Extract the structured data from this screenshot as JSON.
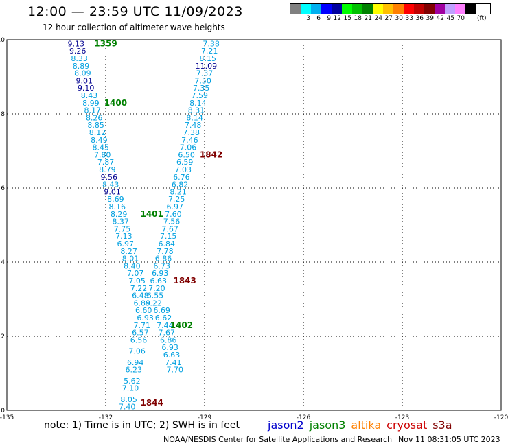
{
  "header": {
    "title": "12:00 — 23:59 UTC 11/09/2023",
    "subtitle": "12 hour collection of altimeter wave heights"
  },
  "legend": {
    "swatches": [
      {
        "color": "#808080",
        "label": ""
      },
      {
        "color": "#00ffff",
        "label": "3"
      },
      {
        "color": "#00b0f0",
        "label": "6"
      },
      {
        "color": "#0000ff",
        "label": "9"
      },
      {
        "color": "#0000a0",
        "label": "12"
      },
      {
        "color": "#00ff00",
        "label": "15"
      },
      {
        "color": "#00c000",
        "label": "18"
      },
      {
        "color": "#008000",
        "label": "21"
      },
      {
        "color": "#ffff00",
        "label": "24"
      },
      {
        "color": "#ffc000",
        "label": "27"
      },
      {
        "color": "#ff8000",
        "label": "30"
      },
      {
        "color": "#ff0000",
        "label": "33"
      },
      {
        "color": "#c00000",
        "label": "36"
      },
      {
        "color": "#800000",
        "label": "39"
      },
      {
        "color": "#a000a0",
        "label": "42"
      },
      {
        "color": "#c0a0ff",
        "label": "45"
      },
      {
        "color": "#ff80ff",
        "label": "70"
      },
      {
        "color": "#000000",
        "label": ""
      }
    ],
    "unit": "(ft)"
  },
  "note": "note:  1) Time is in UTC;  2) SWH is in feet",
  "satellites": [
    {
      "name": "jason2",
      "color": "#0000cc"
    },
    {
      "name": "jason3",
      "color": "#008000"
    },
    {
      "name": "altika",
      "color": "#ff8000"
    },
    {
      "name": "cryosat",
      "color": "#cc0000"
    },
    {
      "name": "s3a",
      "color": "#800000"
    }
  ],
  "footer": {
    "credit": "NOAA/NESDIS Center for Satellite Applications and Research",
    "timestamp": "Nov 11 08:31:05 UTC 2023"
  },
  "colors": {
    "swh_low": "#00a0e0",
    "swh_mid": "#000090",
    "jason3_time": "#008000",
    "s3a_time": "#800000"
  },
  "chart_data": {
    "type": "scatter",
    "xlim": [
      -135,
      -120
    ],
    "ylim": [
      0,
      10
    ],
    "x_ticks": [
      "-135",
      "-132",
      "-129",
      "-126",
      "-123",
      "-120"
    ],
    "y_ticks": [
      "0",
      "2",
      "4",
      "6",
      "8",
      "10"
    ],
    "grid": true,
    "time_labels": [
      {
        "text": "1359",
        "x": -132.0,
        "y": 9.9,
        "color": "#008000"
      },
      {
        "text": "1400",
        "x": -131.7,
        "y": 8.3,
        "color": "#008000"
      },
      {
        "text": "1401",
        "x": -130.6,
        "y": 5.3,
        "color": "#008000"
      },
      {
        "text": "1402",
        "x": -129.7,
        "y": 2.3,
        "color": "#008000"
      },
      {
        "text": "1842",
        "x": -128.8,
        "y": 6.9,
        "color": "#800000"
      },
      {
        "text": "1843",
        "x": -129.6,
        "y": 3.5,
        "color": "#800000"
      },
      {
        "text": "1844",
        "x": -130.6,
        "y": 0.2,
        "color": "#800000"
      }
    ],
    "series": [
      {
        "name": "jason3",
        "points": [
          {
            "x": -132.9,
            "y": 9.9,
            "v": "9.13"
          },
          {
            "x": -132.85,
            "y": 9.7,
            "v": "9.26"
          },
          {
            "x": -132.8,
            "y": 9.5,
            "v": "8.33"
          },
          {
            "x": -132.75,
            "y": 9.3,
            "v": "8.89"
          },
          {
            "x": -132.7,
            "y": 9.1,
            "v": "8.09"
          },
          {
            "x": -132.65,
            "y": 8.9,
            "v": "9.01"
          },
          {
            "x": -132.6,
            "y": 8.7,
            "v": "9.10"
          },
          {
            "x": -132.5,
            "y": 8.5,
            "v": "8.43"
          },
          {
            "x": -132.45,
            "y": 8.3,
            "v": "8.99"
          },
          {
            "x": -132.4,
            "y": 8.1,
            "v": "8.17"
          },
          {
            "x": -132.35,
            "y": 7.9,
            "v": "8.26"
          },
          {
            "x": -132.3,
            "y": 7.7,
            "v": "8.85"
          },
          {
            "x": -132.25,
            "y": 7.5,
            "v": "8.12"
          },
          {
            "x": -132.2,
            "y": 7.3,
            "v": "8.49"
          },
          {
            "x": -132.15,
            "y": 7.1,
            "v": "8.45"
          },
          {
            "x": -132.1,
            "y": 6.9,
            "v": "7.80"
          },
          {
            "x": -132.0,
            "y": 6.7,
            "v": "7.87"
          },
          {
            "x": -131.95,
            "y": 6.5,
            "v": "8.79"
          },
          {
            "x": -131.9,
            "y": 6.3,
            "v": "9.56"
          },
          {
            "x": -131.85,
            "y": 6.1,
            "v": "8.43"
          },
          {
            "x": -131.8,
            "y": 5.9,
            "v": "9.01"
          },
          {
            "x": -131.7,
            "y": 5.7,
            "v": "8.69"
          },
          {
            "x": -131.65,
            "y": 5.5,
            "v": "8.16"
          },
          {
            "x": -131.6,
            "y": 5.3,
            "v": "8.29"
          },
          {
            "x": -131.55,
            "y": 5.1,
            "v": "8.37"
          },
          {
            "x": -131.5,
            "y": 4.9,
            "v": "7.75"
          },
          {
            "x": -131.45,
            "y": 4.7,
            "v": "7.13"
          },
          {
            "x": -131.4,
            "y": 4.5,
            "v": "6.97"
          },
          {
            "x": -131.3,
            "y": 4.3,
            "v": "8.27"
          },
          {
            "x": -131.25,
            "y": 4.1,
            "v": "8.01"
          },
          {
            "x": -131.2,
            "y": 3.9,
            "v": "8.40"
          },
          {
            "x": -131.1,
            "y": 3.7,
            "v": "7.07"
          },
          {
            "x": -131.05,
            "y": 3.5,
            "v": "7.05"
          },
          {
            "x": -131.0,
            "y": 3.3,
            "v": "7.22"
          },
          {
            "x": -130.95,
            "y": 3.1,
            "v": "6.48"
          },
          {
            "x": -130.9,
            "y": 2.9,
            "v": "6.89"
          },
          {
            "x": -130.85,
            "y": 2.7,
            "v": "6.60"
          },
          {
            "x": -130.8,
            "y": 2.5,
            "v": "6.93"
          },
          {
            "x": -130.9,
            "y": 2.3,
            "v": "7.71"
          },
          {
            "x": -130.95,
            "y": 2.1,
            "v": "6.57"
          },
          {
            "x": -131.0,
            "y": 1.9,
            "v": "6.56"
          },
          {
            "x": -131.05,
            "y": 1.6,
            "v": "7.06"
          },
          {
            "x": -131.1,
            "y": 1.3,
            "v": "6.94"
          },
          {
            "x": -131.15,
            "y": 1.1,
            "v": "6.23"
          },
          {
            "x": -131.2,
            "y": 0.8,
            "v": "5.62"
          },
          {
            "x": -131.25,
            "y": 0.6,
            "v": "7.10"
          },
          {
            "x": -131.3,
            "y": 0.3,
            "v": "8.05"
          },
          {
            "x": -131.35,
            "y": 0.1,
            "v": "7.40"
          }
        ]
      },
      {
        "name": "s3a",
        "points": [
          {
            "x": -128.8,
            "y": 9.9,
            "v": "7.38"
          },
          {
            "x": -128.85,
            "y": 9.7,
            "v": "7.21"
          },
          {
            "x": -128.9,
            "y": 9.5,
            "v": "8.15"
          },
          {
            "x": -128.95,
            "y": 9.3,
            "v": "11.09"
          },
          {
            "x": -129.0,
            "y": 9.1,
            "v": "7.37"
          },
          {
            "x": -129.05,
            "y": 8.9,
            "v": "7.50"
          },
          {
            "x": -129.1,
            "y": 8.7,
            "v": "7.35"
          },
          {
            "x": -129.15,
            "y": 8.5,
            "v": "7.59"
          },
          {
            "x": -129.2,
            "y": 8.3,
            "v": "8.14"
          },
          {
            "x": -129.25,
            "y": 8.1,
            "v": "8.31"
          },
          {
            "x": -129.3,
            "y": 7.9,
            "v": "8.14"
          },
          {
            "x": -129.35,
            "y": 7.7,
            "v": "7.48"
          },
          {
            "x": -129.4,
            "y": 7.5,
            "v": "7.38"
          },
          {
            "x": -129.45,
            "y": 7.3,
            "v": "7.46"
          },
          {
            "x": -129.5,
            "y": 7.1,
            "v": "7.06"
          },
          {
            "x": -129.55,
            "y": 6.9,
            "v": "6.50"
          },
          {
            "x": -129.6,
            "y": 6.7,
            "v": "6.59"
          },
          {
            "x": -129.65,
            "y": 6.5,
            "v": "7.03"
          },
          {
            "x": -129.7,
            "y": 6.3,
            "v": "6.76"
          },
          {
            "x": -129.75,
            "y": 6.1,
            "v": "6.82"
          },
          {
            "x": -129.8,
            "y": 5.9,
            "v": "8.21"
          },
          {
            "x": -129.85,
            "y": 5.7,
            "v": "7.25"
          },
          {
            "x": -129.9,
            "y": 5.5,
            "v": "6.97"
          },
          {
            "x": -129.95,
            "y": 5.3,
            "v": "7.60"
          },
          {
            "x": -130.0,
            "y": 5.1,
            "v": "7.56"
          },
          {
            "x": -130.05,
            "y": 4.9,
            "v": "7.67"
          },
          {
            "x": -130.1,
            "y": 4.7,
            "v": "7.15"
          },
          {
            "x": -130.15,
            "y": 4.5,
            "v": "6.84"
          },
          {
            "x": -130.2,
            "y": 4.3,
            "v": "7.78"
          },
          {
            "x": -130.25,
            "y": 4.1,
            "v": "6.86"
          },
          {
            "x": -130.3,
            "y": 3.9,
            "v": "6.73"
          },
          {
            "x": -130.35,
            "y": 3.7,
            "v": "6.93"
          },
          {
            "x": -130.4,
            "y": 3.5,
            "v": "6.63"
          },
          {
            "x": -130.45,
            "y": 3.3,
            "v": "7.20"
          },
          {
            "x": -130.5,
            "y": 3.1,
            "v": "6.55"
          },
          {
            "x": -130.55,
            "y": 2.9,
            "v": "6.22"
          },
          {
            "x": -130.3,
            "y": 2.7,
            "v": "6.69"
          },
          {
            "x": -130.25,
            "y": 2.5,
            "v": "6.62"
          },
          {
            "x": -130.2,
            "y": 2.3,
            "v": "7.44"
          },
          {
            "x": -130.15,
            "y": 2.1,
            "v": "7.67"
          },
          {
            "x": -130.1,
            "y": 1.9,
            "v": "6.86"
          },
          {
            "x": -130.05,
            "y": 1.7,
            "v": "6.93"
          },
          {
            "x": -130.0,
            "y": 1.5,
            "v": "6.63"
          },
          {
            "x": -129.95,
            "y": 1.3,
            "v": "7.41"
          },
          {
            "x": -129.9,
            "y": 1.1,
            "v": "7.70"
          }
        ]
      }
    ]
  }
}
